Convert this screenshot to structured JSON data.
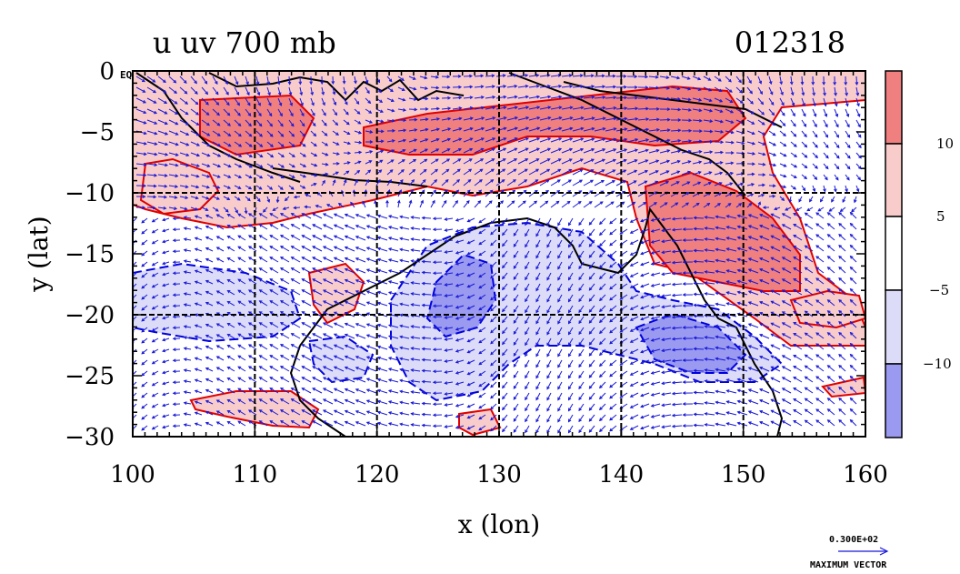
{
  "title_left": "u uv 700 mb",
  "title_right": "012318",
  "xlabel": "x (lon)",
  "ylabel": "y (lat)",
  "eq_label": "EQ",
  "x_ticks": [
    "100",
    "110",
    "120",
    "130",
    "140",
    "150",
    "160"
  ],
  "y_ticks": [
    "0",
    "−5",
    "−10",
    "−15",
    "−20",
    "−25",
    "−30"
  ],
  "colorbar": {
    "labels": [
      "10",
      "5",
      "−5",
      "−10"
    ],
    "colors": [
      "#f08080",
      "#f9cccc",
      "#ffffff",
      "#dcdcf8",
      "#9a9af0"
    ]
  },
  "legend_vector": {
    "value": "0.300E+02",
    "label": "MAXIMUM VECTOR"
  },
  "colors": {
    "positive_fill_strong": "#f08080",
    "positive_fill_light": "#f9cccc",
    "negative_fill_light": "#dcdcf8",
    "negative_fill_strong": "#9a9af0",
    "positive_contour": "#e00000",
    "negative_contour": "#0000e0",
    "coast": "#000000",
    "vector": "#1818d8"
  },
  "chart_data": {
    "type": "heatmap",
    "variable": "u",
    "level": "700 mb",
    "xlim": [
      100,
      160
    ],
    "ylim": [
      -30,
      0
    ],
    "contour_levels": [
      -10,
      -5,
      5,
      10
    ],
    "grid": true
  }
}
